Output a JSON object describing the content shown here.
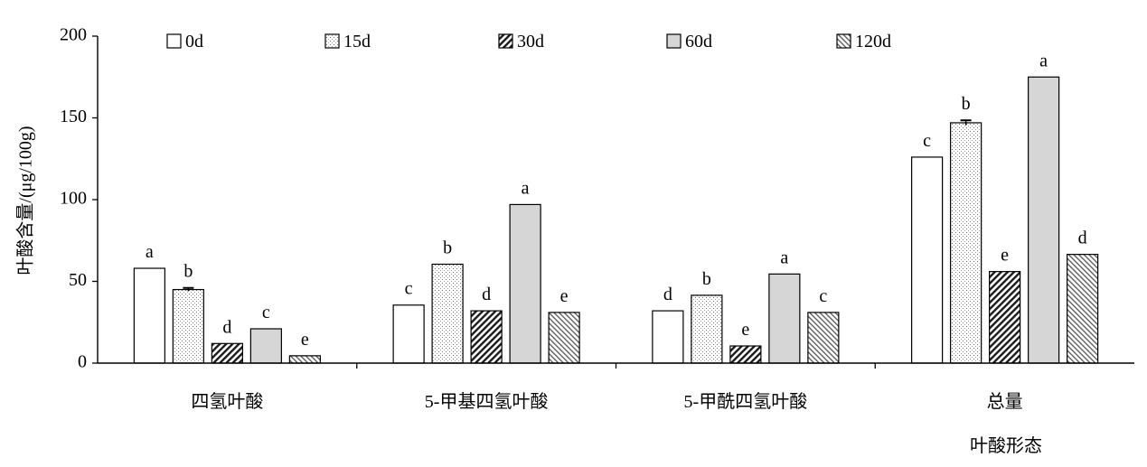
{
  "chart_data": {
    "type": "bar",
    "title": "",
    "xlabel": "叶酸形态",
    "ylabel": "叶酸含量/(μg/100g)",
    "ylim": [
      0,
      200
    ],
    "yticks": [
      "0",
      "50",
      "100",
      "150",
      "200"
    ],
    "categories": [
      "四氢叶酸",
      "5-甲基四氢叶酸",
      "5-甲酰四氢叶酸",
      "总量"
    ],
    "legend_placement": "top",
    "series": [
      {
        "name": "0d",
        "values": [
          58,
          35.5,
          32,
          126
        ],
        "errors": [
          0,
          0,
          0,
          0
        ],
        "letters": [
          "a",
          "c",
          "d",
          "c"
        ]
      },
      {
        "name": "15d",
        "values": [
          45,
          60.5,
          41.5,
          147
        ],
        "errors": [
          1,
          0,
          0,
          1.5
        ],
        "letters": [
          "b",
          "b",
          "b",
          "b"
        ]
      },
      {
        "name": "30d",
        "values": [
          12,
          32,
          10.5,
          56
        ],
        "errors": [
          0,
          0,
          0,
          0
        ],
        "letters": [
          "d",
          "d",
          "e",
          "e"
        ]
      },
      {
        "name": "60d",
        "values": [
          21,
          97,
          54.5,
          175
        ],
        "errors": [
          0,
          0,
          0,
          0
        ],
        "letters": [
          "c",
          "a",
          "a",
          "a"
        ]
      },
      {
        "name": "120d",
        "values": [
          4.5,
          31,
          31,
          66.5
        ],
        "errors": [
          0,
          0,
          0,
          0
        ],
        "letters": [
          "e",
          "e",
          "c",
          "d"
        ]
      }
    ]
  }
}
